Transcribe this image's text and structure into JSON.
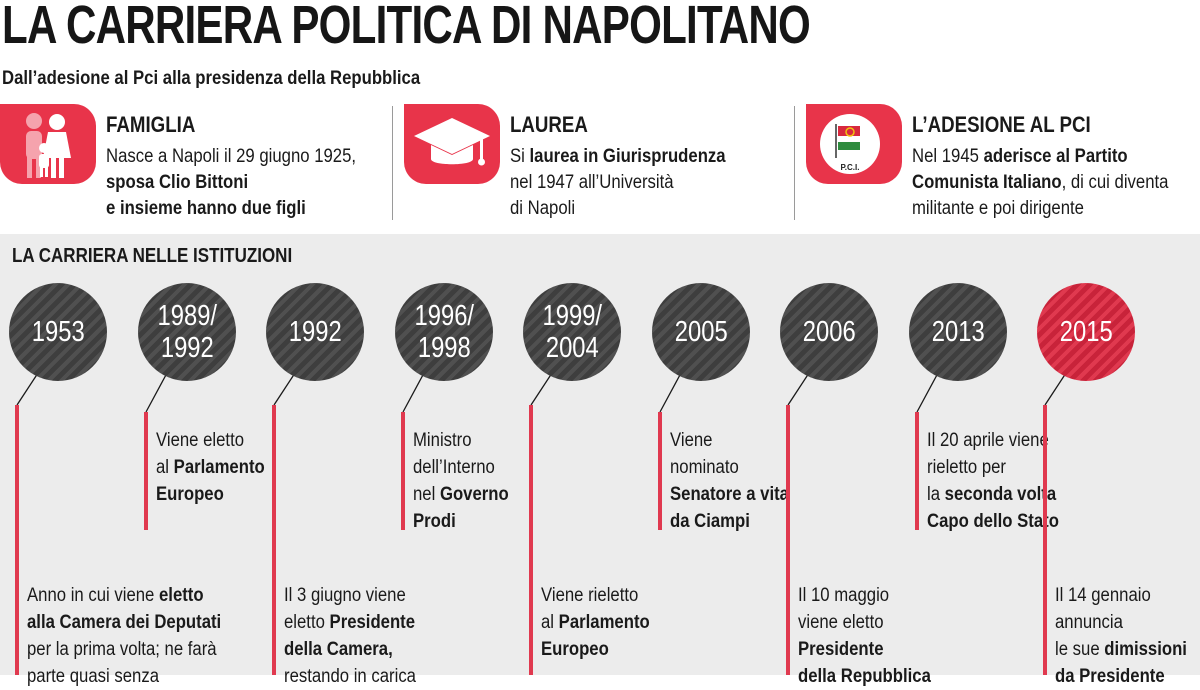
{
  "header": {
    "title": "LA CARRIERA POLITICA DI NAPOLITANO",
    "subtitle": "Dall’adesione al Pci alla presidenza della Repubblica"
  },
  "info": [
    {
      "title": "FAMIGLIA",
      "icon": "family-icon",
      "lines": [
        [
          {
            "t": "Nasce a Napoli il 29 giugno 1925,",
            "b": false
          }
        ],
        [
          {
            "t": "sposa Clio Bittoni",
            "b": true
          }
        ],
        [
          {
            "t": "e insieme hanno due figli",
            "b": true
          }
        ]
      ]
    },
    {
      "title": "LAUREA",
      "icon": "graduation-cap-icon",
      "lines": [
        [
          {
            "t": "Si ",
            "b": false
          },
          {
            "t": "laurea in Giurisprudenza",
            "b": true
          }
        ],
        [
          {
            "t": "nel 1947 all’Università",
            "b": false
          }
        ],
        [
          {
            "t": "di Napoli",
            "b": false
          }
        ]
      ]
    },
    {
      "title": "L’ADESIONE AL PCI",
      "icon": "pci-flag-icon",
      "icon_text": "P.C.I.",
      "lines": [
        [
          {
            "t": "Nel 1945 ",
            "b": false
          },
          {
            "t": "aderisce al Partito",
            "b": true
          }
        ],
        [
          {
            "t": "Comunista Italiano",
            "b": true
          },
          {
            "t": ", di cui diventa",
            "b": false
          }
        ],
        [
          {
            "t": "militante e poi dirigente",
            "b": false
          }
        ]
      ]
    }
  ],
  "timeline": {
    "title": "LA CARRIERA NELLE ISTITUZIONI",
    "years": [
      {
        "lines": [
          "1953"
        ],
        "highlight": false
      },
      {
        "lines": [
          "1989/",
          "1992"
        ],
        "highlight": false
      },
      {
        "lines": [
          "1992"
        ],
        "highlight": false
      },
      {
        "lines": [
          "1996/",
          "1998"
        ],
        "highlight": false
      },
      {
        "lines": [
          "1999/",
          "2004"
        ],
        "highlight": false
      },
      {
        "lines": [
          "2005"
        ],
        "highlight": false
      },
      {
        "lines": [
          "2006"
        ],
        "highlight": false
      },
      {
        "lines": [
          "2013"
        ],
        "highlight": false
      },
      {
        "lines": [
          "2015"
        ],
        "highlight": true
      }
    ],
    "events": [
      {
        "lines": [
          [
            {
              "t": "Anno in cui viene ",
              "b": false
            },
            {
              "t": "eletto",
              "b": true
            }
          ],
          [
            {
              "t": "alla Camera dei Deputati",
              "b": true
            }
          ],
          [
            {
              "t": "per la prima volta; ne farà",
              "b": false
            }
          ],
          [
            {
              "t": "parte quasi senza",
              "b": false
            }
          ]
        ]
      },
      {
        "lines": [
          [
            {
              "t": "Viene eletto",
              "b": false
            }
          ],
          [
            {
              "t": "al ",
              "b": false
            },
            {
              "t": "Parlamento",
              "b": true
            }
          ],
          [
            {
              "t": "Europeo",
              "b": true
            }
          ]
        ]
      },
      {
        "lines": [
          [
            {
              "t": "Il 3 giugno viene",
              "b": false
            }
          ],
          [
            {
              "t": "eletto ",
              "b": false
            },
            {
              "t": "Presidente",
              "b": true
            }
          ],
          [
            {
              "t": "della Camera,",
              "b": true
            }
          ],
          [
            {
              "t": "restando in carica",
              "b": false
            }
          ]
        ]
      },
      {
        "lines": [
          [
            {
              "t": "Ministro",
              "b": false
            }
          ],
          [
            {
              "t": "dell’Interno",
              "b": false
            }
          ],
          [
            {
              "t": "nel ",
              "b": false
            },
            {
              "t": "Governo",
              "b": true
            }
          ],
          [
            {
              "t": "Prodi",
              "b": true
            }
          ]
        ]
      },
      {
        "lines": [
          [
            {
              "t": "Viene rieletto",
              "b": false
            }
          ],
          [
            {
              "t": "al ",
              "b": false
            },
            {
              "t": "Parlamento",
              "b": true
            }
          ],
          [
            {
              "t": "Europeo",
              "b": true
            }
          ]
        ]
      },
      {
        "lines": [
          [
            {
              "t": "Viene",
              "b": false
            }
          ],
          [
            {
              "t": "nominato",
              "b": false
            }
          ],
          [
            {
              "t": "Senatore a vita",
              "b": true
            }
          ],
          [
            {
              "t": "da Ciampi",
              "b": true
            }
          ]
        ]
      },
      {
        "lines": [
          [
            {
              "t": "Il 10 maggio",
              "b": false
            }
          ],
          [
            {
              "t": "viene eletto",
              "b": false
            }
          ],
          [
            {
              "t": "Presidente",
              "b": true
            }
          ],
          [
            {
              "t": "della Repubblica",
              "b": true
            }
          ]
        ]
      },
      {
        "lines": [
          [
            {
              "t": "Il 20 aprile viene",
              "b": false
            }
          ],
          [
            {
              "t": "rieletto per",
              "b": false
            }
          ],
          [
            {
              "t": "la ",
              "b": false
            },
            {
              "t": "seconda volta",
              "b": true
            }
          ],
          [
            {
              "t": "Capo dello Stato",
              "b": true
            }
          ]
        ]
      },
      {
        "lines": [
          [
            {
              "t": "Il 14 gennaio",
              "b": false
            }
          ],
          [
            {
              "t": "annuncia",
              "b": false
            }
          ],
          [
            {
              "t": "le sue ",
              "b": false
            },
            {
              "t": "dimissioni",
              "b": true
            }
          ],
          [
            {
              "t": "da Presidente",
              "b": true
            }
          ]
        ]
      }
    ]
  },
  "colors": {
    "accent": "#e0394f",
    "dark_circle": "#474747",
    "band": "#ececec",
    "text": "#1a1a1a"
  }
}
